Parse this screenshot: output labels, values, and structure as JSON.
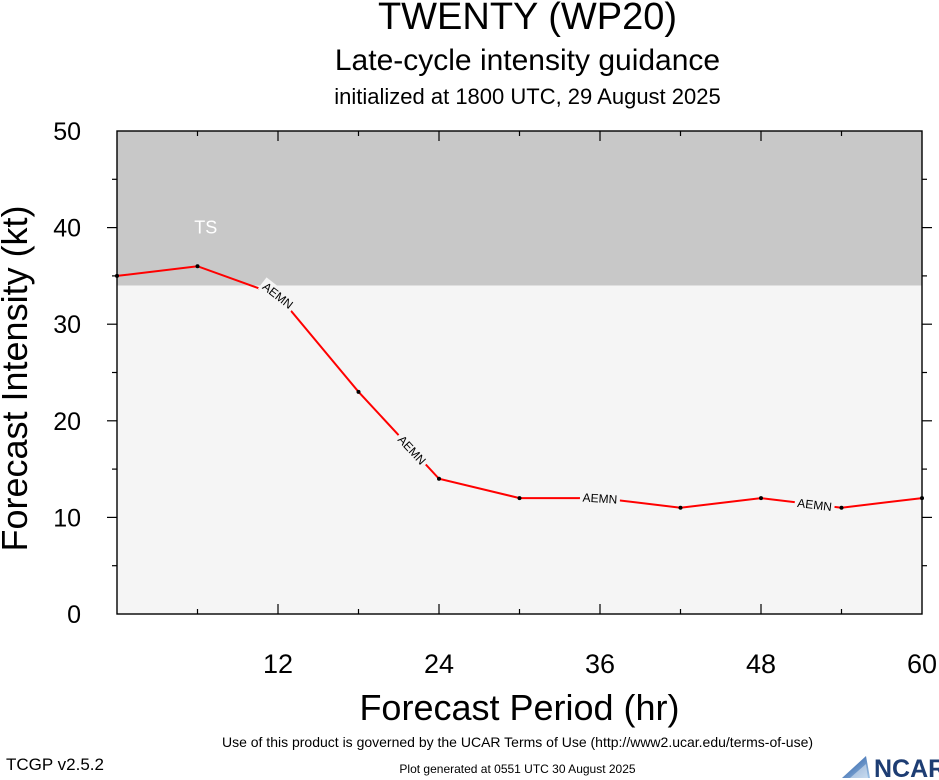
{
  "header": {
    "title": "TWENTY (WP20)",
    "subtitle": "Late-cycle intensity guidance",
    "init_line": "initialized at 1800 UTC, 29 August 2025"
  },
  "footer": {
    "terms": "Use of this product is governed by the UCAR Terms of Use (http://www2.ucar.edu/terms-of-use)",
    "version": "TCGP v2.5.2",
    "generated": "Plot generated at 0551 UTC   30 August 2025",
    "logo_text": "NCAR"
  },
  "chart_data": {
    "type": "line",
    "title": "TWENTY (WP20)",
    "xlabel": "Forecast Period (hr)",
    "ylabel": "Forecast Intensity (kt)",
    "xlim": [
      0,
      60
    ],
    "ylim": [
      0,
      50
    ],
    "x_ticks": [
      12,
      24,
      36,
      48,
      60
    ],
    "y_ticks": [
      0,
      10,
      20,
      30,
      40,
      50
    ],
    "grid": false,
    "bands": [
      {
        "label": "TS",
        "y_from": 34,
        "y_to": 50,
        "color": "#c8c8c8"
      },
      {
        "label": "",
        "y_from": 0,
        "y_to": 34,
        "color": "#f5f5f5"
      }
    ],
    "series": [
      {
        "name": "AEMN",
        "color": "#ff0000",
        "x": [
          0,
          6,
          12,
          18,
          24,
          30,
          36,
          42,
          48,
          54,
          60
        ],
        "values": [
          35,
          36,
          33,
          23,
          14,
          12,
          12,
          11,
          12,
          11,
          12
        ],
        "label_positions_x": [
          12,
          22,
          36,
          52
        ]
      }
    ]
  }
}
